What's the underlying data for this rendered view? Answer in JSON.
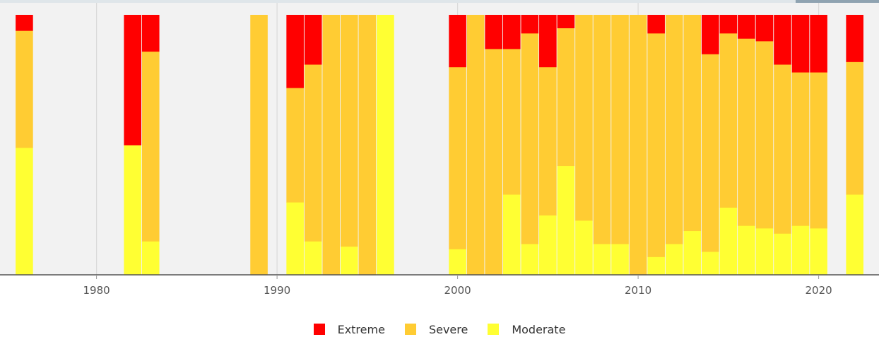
{
  "chart_data": {
    "type": "bar",
    "stacked": true,
    "normalized": true,
    "title": "",
    "xlabel": "",
    "ylabel": "",
    "xlim": [
      1975.5,
      2022.5
    ],
    "ylim": [
      0,
      1
    ],
    "grid": true,
    "legend_position": "bottom",
    "x_ticks": [
      {
        "value": 1980,
        "label": "1980"
      },
      {
        "value": 1990,
        "label": "1990"
      },
      {
        "value": 2000,
        "label": "2000"
      },
      {
        "value": 2010,
        "label": "2010"
      },
      {
        "value": 2020,
        "label": "2020"
      }
    ],
    "x": [
      1976,
      1982,
      1983,
      1989,
      1991,
      1992,
      1993,
      1994,
      1995,
      1996,
      2000,
      2001,
      2002,
      2003,
      2004,
      2005,
      2006,
      2007,
      2008,
      2009,
      2010,
      2011,
      2012,
      2013,
      2014,
      2015,
      2016,
      2017,
      2018,
      2019,
      2020,
      2022
    ],
    "series": [
      {
        "name": "Moderate",
        "color": "#ffff33",
        "values": [
          0.49,
          0.5,
          0.13,
          0.0,
          0.28,
          0.13,
          0.0,
          0.11,
          0.0,
          1.0,
          0.1,
          0.0,
          0.0,
          0.31,
          0.12,
          0.23,
          0.42,
          0.21,
          0.12,
          0.12,
          0.0,
          0.07,
          0.12,
          0.17,
          0.09,
          0.26,
          0.19,
          0.18,
          0.16,
          0.19,
          0.18,
          0.31
        ]
      },
      {
        "name": "Severe",
        "color": "#ffcc33",
        "values": [
          0.45,
          0.0,
          0.73,
          1.0,
          0.44,
          0.68,
          1.0,
          0.89,
          1.0,
          0.0,
          0.7,
          1.0,
          0.87,
          0.56,
          0.81,
          0.57,
          0.53,
          0.79,
          0.88,
          0.88,
          1.0,
          0.86,
          0.88,
          0.83,
          0.76,
          0.67,
          0.72,
          0.72,
          0.65,
          0.59,
          0.6,
          0.51
        ]
      },
      {
        "name": "Extreme",
        "color": "#ff0000",
        "values": [
          0.06,
          0.5,
          0.14,
          0.0,
          0.28,
          0.19,
          0.0,
          0.0,
          0.0,
          0.0,
          0.2,
          0.0,
          0.13,
          0.13,
          0.07,
          0.2,
          0.05,
          0.0,
          0.0,
          0.0,
          0.0,
          0.07,
          0.0,
          0.0,
          0.15,
          0.07,
          0.09,
          0.1,
          0.19,
          0.22,
          0.22,
          0.18
        ]
      }
    ]
  }
}
